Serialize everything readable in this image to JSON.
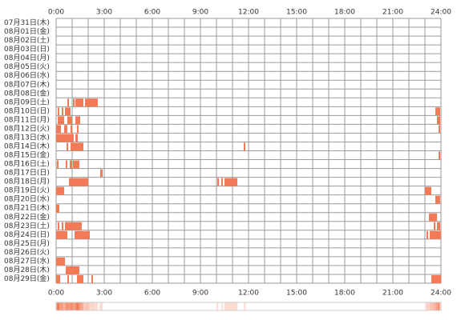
{
  "chart_data": {
    "type": "timeline",
    "categories": [
      "07月31日(木)",
      "08月01日(金)",
      "08月02日(土)",
      "08月03日(日)",
      "08月04日(月)",
      "08月05日(火)",
      "08月06日(水)",
      "08月07日(木)",
      "08月08日(金)",
      "08月09日(土)",
      "08月10日(日)",
      "08月11日(月)",
      "08月12日(火)",
      "08月13日(水)",
      "08月14日(木)",
      "08月15日(金)",
      "08月16日(土)",
      "08月17日(日)",
      "08月18日(月)",
      "08月19日(火)",
      "08月20日(水)",
      "08月21日(木)",
      "08月22日(金)",
      "08月23日(土)",
      "08月24日(日)",
      "08月25日(月)",
      "08月26日(火)",
      "08月27日(水)",
      "08月28日(木)",
      "08月29日(金)"
    ],
    "values": [
      [],
      [],
      [],
      [],
      [],
      [],
      [],
      [],
      [],
      [
        [
          0.7,
          0.8
        ],
        [
          1.05,
          1.15
        ],
        [
          1.2,
          1.7
        ],
        [
          1.8,
          2.6
        ]
      ],
      [
        [
          0.1,
          0.2
        ],
        [
          0.35,
          0.45
        ],
        [
          0.55,
          0.9
        ],
        [
          23.65,
          23.95
        ]
      ],
      [
        [
          0.1,
          0.5
        ],
        [
          0.7,
          1.0
        ],
        [
          1.2,
          1.5
        ],
        [
          23.75,
          23.95
        ]
      ],
      [
        [
          0,
          0.3
        ],
        [
          0.5,
          0.7
        ],
        [
          0.9,
          1.0
        ],
        [
          1.3,
          1.4
        ],
        [
          23.85,
          23.95
        ]
      ],
      [
        [
          0,
          1.1
        ],
        [
          1.2,
          1.35
        ]
      ],
      [
        [
          0.65,
          0.75
        ],
        [
          0.9,
          1.7
        ],
        [
          11.7,
          11.8
        ]
      ],
      [
        [
          23.85,
          23.95
        ]
      ],
      [
        [
          0.05,
          0.15
        ],
        [
          0.6,
          0.7
        ],
        [
          0.85,
          1.0
        ],
        [
          1.05,
          1.45
        ]
      ],
      [
        [
          2.75,
          2.9
        ]
      ],
      [
        [
          0.8,
          2.0
        ],
        [
          10.05,
          10.15
        ],
        [
          10.3,
          10.4
        ],
        [
          10.5,
          11.3
        ]
      ],
      [
        [
          0,
          0.5
        ],
        [
          23.0,
          23.4
        ]
      ],
      [
        [
          23.65,
          23.95
        ]
      ],
      [
        [
          0,
          0.2
        ]
      ],
      [
        [
          23.25,
          23.75
        ]
      ],
      [
        [
          0.1,
          0.2
        ],
        [
          0.35,
          0.45
        ],
        [
          0.55,
          1.6
        ],
        [
          23.55,
          23.65
        ],
        [
          23.75,
          23.95
        ]
      ],
      [
        [
          0,
          0.7
        ],
        [
          1.15,
          2.1
        ],
        [
          23.1,
          23.2
        ],
        [
          23.3,
          24
        ]
      ],
      [],
      [],
      [
        [
          0,
          0.55
        ]
      ],
      [
        [
          0.6,
          1.45
        ]
      ],
      [
        [
          0,
          0.25
        ],
        [
          0.7,
          0.8
        ],
        [
          1.3,
          1.7
        ],
        [
          2.2,
          2.3
        ],
        [
          23.4,
          24
        ]
      ]
    ],
    "color": "#f27a56",
    "xlim": [
      0,
      24
    ],
    "xticks": [
      {
        "value": 0,
        "label": "0:00"
      },
      {
        "value": 3,
        "label": "3:00"
      },
      {
        "value": 6,
        "label": "6:00"
      },
      {
        "value": 9,
        "label": "9:00"
      },
      {
        "value": 12,
        "label": "12:00"
      },
      {
        "value": 15,
        "label": "15:00"
      },
      {
        "value": 18,
        "label": "18:00"
      },
      {
        "value": 21,
        "label": "21:00"
      },
      {
        "value": 24,
        "label": "24:00"
      }
    ],
    "xminorticks": [
      1,
      2,
      4,
      5,
      7,
      8,
      10,
      11,
      13,
      14,
      16,
      17,
      19,
      20,
      22,
      23
    ]
  }
}
